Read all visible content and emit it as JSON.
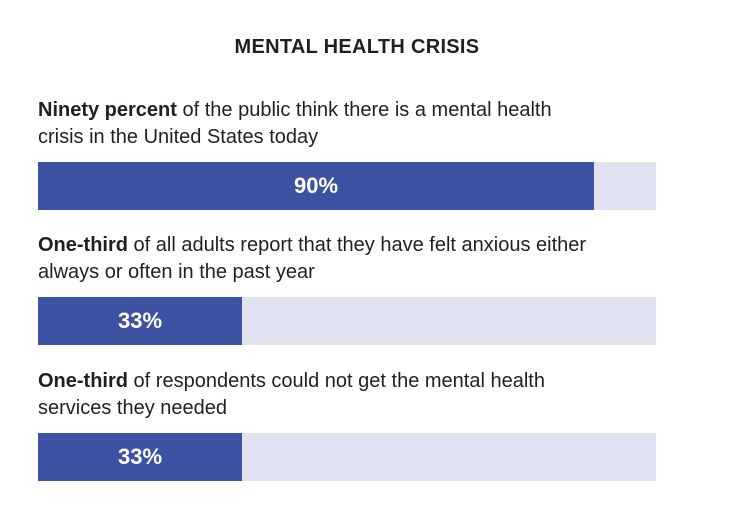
{
  "title": "MENTAL HEALTH CRISIS",
  "colors": {
    "bar_fill": "#3e52a3",
    "bar_track": "#e0e2f0",
    "text": "#231f20"
  },
  "chart_data": {
    "type": "bar",
    "orientation": "horizontal",
    "title": "MENTAL HEALTH CRISIS",
    "xlim": [
      0,
      100
    ],
    "items": [
      {
        "lead": "Ninety percent",
        "text": " of the public think there is a mental health crisis in the United States today",
        "value": 90,
        "label": "90%"
      },
      {
        "lead": "One-third",
        "text": " of all adults report that they have felt anxious either always or often in the past year",
        "value": 33,
        "label": "33%"
      },
      {
        "lead": "One-third",
        "text": " of respondents could not get the mental health services they needed",
        "value": 33,
        "label": "33%"
      }
    ]
  }
}
